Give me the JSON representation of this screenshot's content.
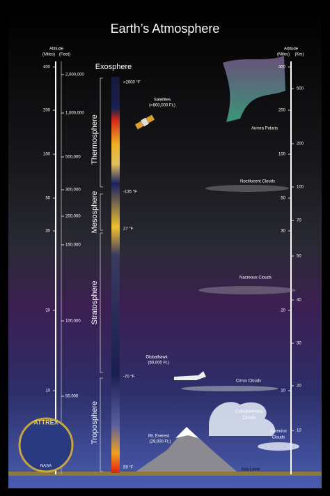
{
  "title": "Earth’s Atmosphere",
  "left_axis": {
    "title": "Altitude",
    "units": [
      "(Miles)",
      "(Feet)"
    ],
    "miles": [
      "400",
      "200",
      "100",
      "50",
      "30",
      "20",
      "10"
    ],
    "feet": [
      "2,000,000",
      "1,000,000",
      "500,000",
      "300,000",
      "200,000",
      "150,000",
      "100,000",
      "50,000"
    ]
  },
  "right_axis": {
    "title": "Altitude",
    "units": [
      "(Miles)",
      "(Km)"
    ],
    "miles": [
      "400",
      "200",
      "100",
      "50",
      "30",
      "20",
      "10"
    ],
    "km": [
      "500",
      "200",
      "100",
      "70",
      "50",
      "40",
      "30",
      "20",
      "10"
    ]
  },
  "layers": [
    "Exosphere",
    "Thermosphere",
    "Mesosphere",
    "Stratosphere",
    "Troposphere"
  ],
  "temperatures": [
    ">2000 °F",
    "-135 °F",
    "27 °F",
    "-70 °F",
    "59 °F"
  ],
  "labels": {
    "satellites": [
      "Satellites",
      "(>800,000 Ft.)"
    ],
    "aurora": "Aurora Polaris",
    "noctilucent": "Noctilucent Clouds",
    "nacreous": "Nacreous Clouds",
    "globalhawk": [
      "Globalhawk",
      "(60,000 Ft.)"
    ],
    "cirrus": "Cirrus Clouds",
    "cumulonimbus": [
      "Cumulonimbus",
      "Clouds"
    ],
    "cumulus": [
      "Cumulus",
      "Clouds"
    ],
    "everest": [
      "Mt. Everest",
      "(29,000 Ft.)"
    ],
    "sea_level": "Sea Level",
    "badge": [
      "ATTREX",
      "NASA"
    ]
  }
}
